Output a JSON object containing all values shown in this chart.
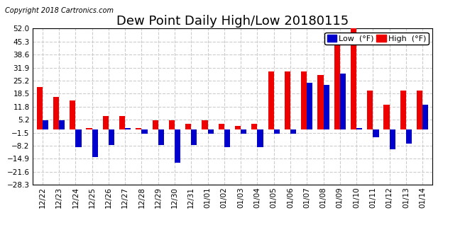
{
  "title": "Dew Point Daily High/Low 20180115",
  "copyright": "Copyright 2018 Cartronics.com",
  "dates": [
    "12/22",
    "12/23",
    "12/24",
    "12/25",
    "12/26",
    "12/27",
    "12/28",
    "12/29",
    "12/30",
    "12/31",
    "01/01",
    "01/02",
    "01/03",
    "01/04",
    "01/05",
    "01/06",
    "01/07",
    "01/08",
    "01/09",
    "01/10",
    "01/11",
    "01/12",
    "01/13",
    "01/14"
  ],
  "high": [
    22,
    17,
    15,
    1,
    7,
    7,
    1,
    5,
    5,
    3,
    5,
    3,
    2,
    3,
    30,
    30,
    30,
    28,
    48,
    52,
    20,
    13,
    20,
    20
  ],
  "low": [
    5,
    5,
    -9,
    -14,
    -8,
    1,
    -2,
    -8,
    -17,
    -8,
    -2,
    -9,
    -2,
    -9,
    -2,
    -2,
    24,
    23,
    29,
    1,
    -4,
    -10,
    -7,
    13
  ],
  "ylim": [
    -28.3,
    52.0
  ],
  "yticks": [
    -28.3,
    -21.6,
    -14.9,
    -8.2,
    -1.5,
    5.2,
    11.8,
    18.5,
    25.2,
    31.9,
    38.6,
    45.3,
    52.0
  ],
  "high_color": "#EE0000",
  "low_color": "#0000CC",
  "bg_color": "#FFFFFF",
  "grid_color": "#CCCCCC",
  "bar_width": 0.35,
  "title_fontsize": 13,
  "copyright_fontsize": 7,
  "tick_fontsize": 7.5,
  "legend_fontsize": 8
}
